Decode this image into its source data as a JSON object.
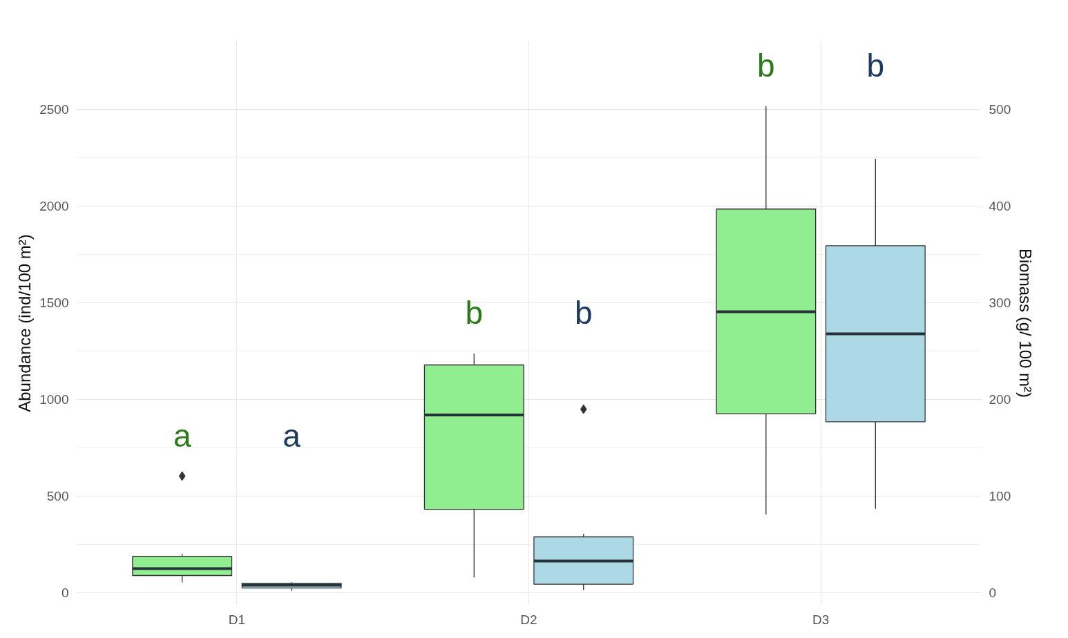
{
  "chart_data": {
    "type": "box",
    "categories": [
      "D1",
      "D2",
      "D3"
    ],
    "ylabel": "Abundance (ind/100 m²)",
    "y2label": "Biomass (g/ 100 m²)",
    "ylim": [
      -60,
      2850
    ],
    "yticks": [
      0,
      500,
      1000,
      1500,
      2000,
      2500
    ],
    "y2lim": [
      -12,
      570
    ],
    "y2ticks": [
      0,
      100,
      200,
      300,
      400,
      500
    ],
    "grid": true,
    "annotations": [
      "a",
      "a",
      "b",
      "b",
      "b",
      "b"
    ],
    "series": [
      {
        "color": "#90ee90",
        "boxes": [
          {
            "low": 53,
            "q1": 90,
            "median": 126,
            "q3": 189,
            "high": 203,
            "outliers": [
              604
            ]
          },
          {
            "low": 80,
            "q1": 432,
            "median": 920,
            "q3": 1179,
            "high": 1238
          },
          {
            "low": 405,
            "q1": 926,
            "median": 1454,
            "q3": 1985,
            "high": 2517
          }
        ]
      },
      {
        "color": "#add8e6",
        "axis": "y2",
        "boxes": [
          {
            "low": 2,
            "q1": 5,
            "median": 8,
            "q3": 10,
            "high": 11
          },
          {
            "low": 3,
            "q1": 9,
            "median": 33,
            "q3": 58,
            "high": 61,
            "outliers": [
              190
            ]
          },
          {
            "low": 87,
            "q1": 177,
            "median": 268,
            "q3": 359,
            "high": 449
          }
        ]
      }
    ]
  }
}
